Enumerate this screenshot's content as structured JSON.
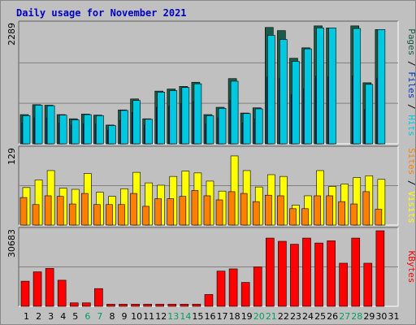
{
  "title": "Daily usage for November 2021",
  "colors": {
    "pages": "#1a5a46",
    "files": "#0030c0",
    "hits": "#00c8e0",
    "visits": "#ffff00",
    "sites": "#ff8000",
    "kbytes": "#ff0000",
    "weekend_tick": "#00a060",
    "weekday_tick": "#000000",
    "panel_bg": "#c0c0c0"
  },
  "chart_data": [
    {
      "type": "bar",
      "name": "hits-files-pages",
      "ylabel_parts": [
        "Pages",
        "Files",
        "Hits"
      ],
      "ymax_label": "2289",
      "ylim": [
        0,
        2289
      ],
      "x": [
        1,
        2,
        3,
        4,
        5,
        6,
        7,
        8,
        9,
        10,
        11,
        12,
        13,
        14,
        15,
        16,
        17,
        18,
        19,
        20,
        21,
        22,
        23,
        24,
        25,
        26,
        27,
        28,
        29,
        30
      ],
      "series": [
        {
          "name": "Pages",
          "values": [
            560,
            750,
            740,
            560,
            480,
            570,
            550,
            360,
            650,
            860,
            480,
            1010,
            1050,
            1100,
            1180,
            560,
            700,
            1250,
            590,
            690,
            2230,
            2170,
            1640,
            1840,
            2260,
            2220,
            0,
            2260,
            1170,
            2190
          ]
        },
        {
          "name": "Files",
          "values": [
            400,
            500,
            500,
            400,
            360,
            380,
            380,
            260,
            450,
            600,
            360,
            700,
            720,
            770,
            810,
            380,
            500,
            830,
            400,
            480,
            1280,
            1250,
            940,
            1060,
            1300,
            1280,
            0,
            1300,
            660,
            1260
          ]
        },
        {
          "name": "Hits",
          "values": [
            540,
            740,
            730,
            550,
            460,
            560,
            540,
            350,
            640,
            830,
            470,
            990,
            1020,
            1080,
            1150,
            540,
            680,
            1200,
            580,
            670,
            2080,
            2000,
            1580,
            1820,
            2220,
            2220,
            0,
            2210,
            1140,
            2190
          ]
        }
      ]
    },
    {
      "type": "bar",
      "name": "visits-sites",
      "ylabel_parts": [
        "Sites",
        "Visits"
      ],
      "ymax_label": "129",
      "ylim": [
        0,
        129
      ],
      "x": [
        1,
        2,
        3,
        4,
        5,
        6,
        7,
        8,
        9,
        10,
        11,
        12,
        13,
        14,
        15,
        16,
        17,
        18,
        19,
        20,
        21,
        22,
        23,
        24,
        25,
        26,
        27,
        28,
        29,
        30
      ],
      "series": [
        {
          "name": "Visits",
          "values": [
            64,
            77,
            93,
            63,
            61,
            88,
            56,
            49,
            62,
            90,
            72,
            68,
            83,
            92,
            89,
            75,
            58,
            118,
            93,
            65,
            86,
            83,
            34,
            50,
            93,
            66,
            70,
            81,
            84,
            78
          ]
        },
        {
          "name": "Sites",
          "values": [
            47,
            35,
            50,
            49,
            36,
            54,
            35,
            35,
            35,
            54,
            32,
            45,
            45,
            49,
            59,
            50,
            43,
            57,
            54,
            40,
            51,
            50,
            28,
            28,
            50,
            50,
            40,
            36,
            57,
            27
          ]
        }
      ]
    },
    {
      "type": "bar",
      "name": "kbytes",
      "ylabel_parts": [
        "KBytes"
      ],
      "ymax_label": "30683",
      "ylim": [
        0,
        30683
      ],
      "x": [
        1,
        2,
        3,
        4,
        5,
        6,
        7,
        8,
        9,
        10,
        11,
        12,
        13,
        14,
        15,
        16,
        17,
        18,
        19,
        20,
        21,
        22,
        23,
        24,
        25,
        26,
        27,
        28,
        29,
        30
      ],
      "series": [
        {
          "name": "KBytes",
          "values": [
            10200,
            14000,
            15400,
            10600,
            1400,
            1400,
            7200,
            850,
            850,
            850,
            850,
            850,
            850,
            850,
            850,
            4800,
            14300,
            15200,
            9700,
            16000,
            27700,
            26400,
            25200,
            27700,
            25700,
            26600,
            17500,
            27700,
            17500,
            30683
          ]
        }
      ]
    }
  ],
  "x_labels": [
    "1",
    "2",
    "3",
    "4",
    "5",
    "6",
    "7",
    "8",
    "9",
    "10",
    "11",
    "12",
    "13",
    "14",
    "15",
    "16",
    "17",
    "18",
    "19",
    "20",
    "21",
    "22",
    "23",
    "24",
    "25",
    "26",
    "27",
    "28",
    "29",
    "30",
    "31"
  ],
  "weekend_days": [
    6,
    7,
    13,
    14,
    20,
    21,
    27,
    28
  ]
}
